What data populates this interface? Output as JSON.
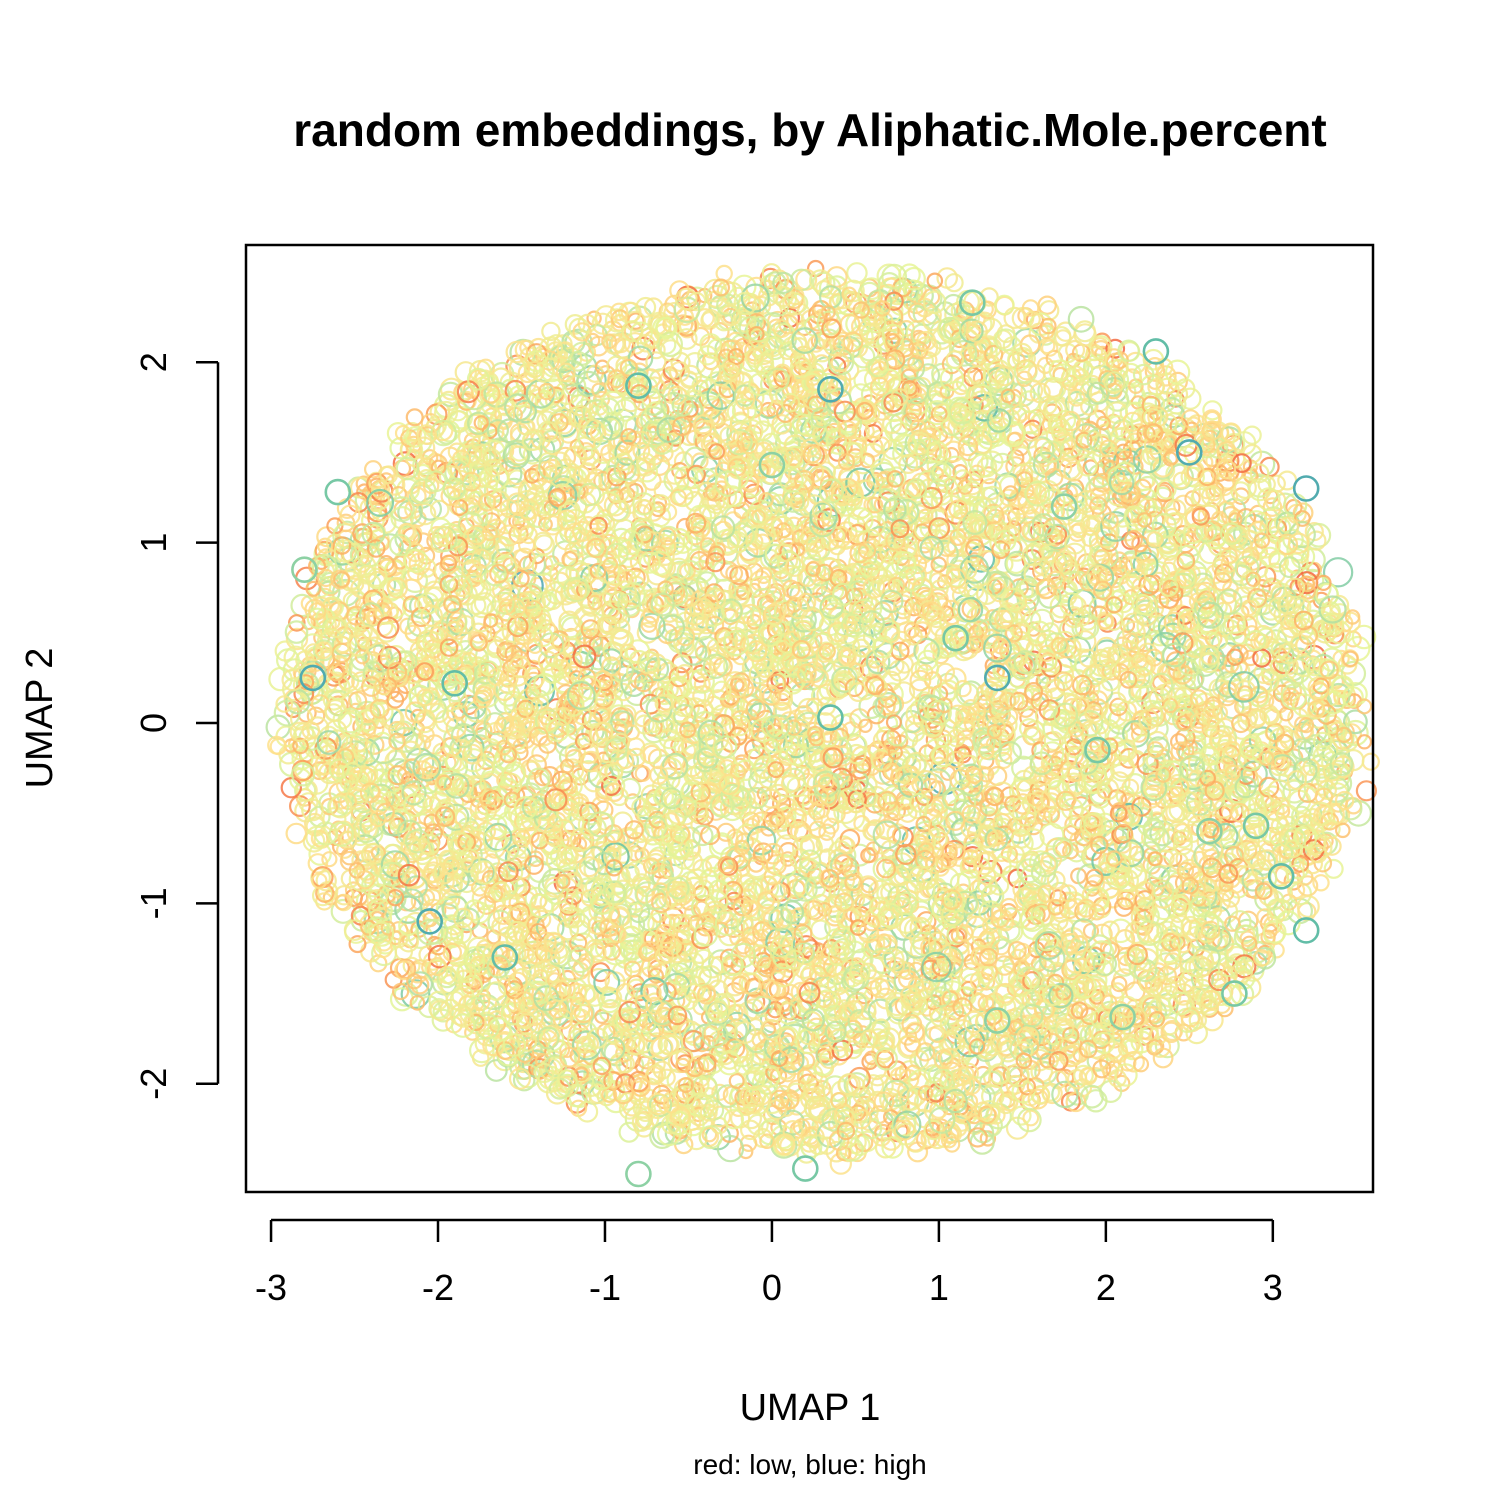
{
  "chart_data": {
    "type": "scatter",
    "title": "random embeddings, by Aliphatic.Mole.percent",
    "xlabel": "UMAP 1",
    "ylabel": "UMAP 2",
    "subtitle": "red: low, blue: high",
    "xlim": [
      -3.15,
      3.6
    ],
    "ylim": [
      -2.6,
      2.65
    ],
    "x_ticks": [
      "-3",
      "-2",
      "-1",
      "0",
      "1",
      "2",
      "3"
    ],
    "y_ticks": [
      "-2",
      "-1",
      "0",
      "1",
      "2"
    ],
    "grid": false,
    "legend": "none",
    "cloud": {
      "shape": "ellipse",
      "center_x": 0.3,
      "center_y": 0.05,
      "radius_x": 3.25,
      "radius_y": 2.45,
      "point_count": 9000
    },
    "color_scale": {
      "low": "#d53e4f",
      "high": "#3288bd",
      "stops": [
        "#d53e4f",
        "#f46d43",
        "#fdae61",
        "#fee08b",
        "#e6f598",
        "#abdda4",
        "#66c2a5",
        "#3288bd",
        "#5e4fa2"
      ]
    },
    "highlighted_points": [
      {
        "x": -2.8,
        "y": 0.85
      },
      {
        "x": -2.6,
        "y": 1.28
      },
      {
        "x": -0.8,
        "y": 1.87
      },
      {
        "x": 0.35,
        "y": 1.85
      },
      {
        "x": 0.0,
        "y": 1.43
      },
      {
        "x": 1.2,
        "y": 2.33
      },
      {
        "x": 2.3,
        "y": 2.06
      },
      {
        "x": 2.5,
        "y": 1.5
      },
      {
        "x": 1.75,
        "y": 1.2
      },
      {
        "x": 1.1,
        "y": 0.47
      },
      {
        "x": 0.35,
        "y": 0.03
      },
      {
        "x": 1.35,
        "y": 0.25
      },
      {
        "x": 2.62,
        "y": -0.6
      },
      {
        "x": 2.9,
        "y": -0.57
      },
      {
        "x": 3.05,
        "y": -0.85
      },
      {
        "x": 3.2,
        "y": 1.3
      },
      {
        "x": 1.35,
        "y": -1.65
      },
      {
        "x": 2.77,
        "y": -1.5
      },
      {
        "x": -1.6,
        "y": -1.3
      },
      {
        "x": -2.05,
        "y": -1.1
      },
      {
        "x": -0.8,
        "y": -2.5
      },
      {
        "x": 0.2,
        "y": -2.47
      },
      {
        "x": -1.9,
        "y": 0.22
      },
      {
        "x": -2.75,
        "y": 0.25
      },
      {
        "x": 2.1,
        "y": -1.63
      },
      {
        "x": 1.95,
        "y": -0.15
      },
      {
        "x": 3.2,
        "y": -1.15
      }
    ]
  }
}
